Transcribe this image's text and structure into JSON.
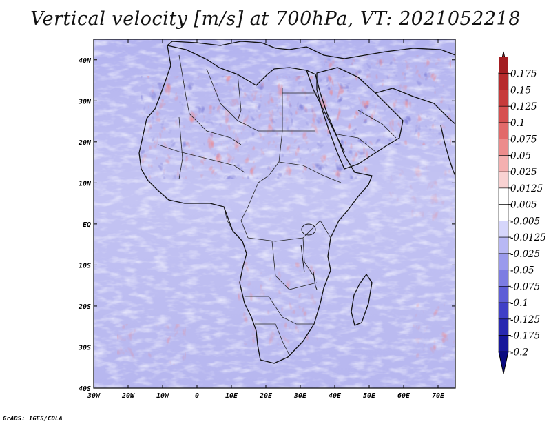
{
  "title": "Vertical velocity [m/s] at 700hPa, VT: 2021052218",
  "credit": "GrADS: IGES/COLA",
  "map": {
    "lon_ticks": [
      "30W",
      "20W",
      "10W",
      "0",
      "10E",
      "20E",
      "30E",
      "40E",
      "50E",
      "60E",
      "70E"
    ],
    "lat_ticks": [
      "40N",
      "30N",
      "20N",
      "10N",
      "EQ",
      "10S",
      "20S",
      "30S",
      "40S"
    ],
    "lon_range": [
      -30,
      75
    ],
    "lat_range": [
      -40,
      45
    ]
  },
  "colorbar": {
    "labels": [
      "0.175",
      "0.15",
      "0.125",
      "0.1",
      "0.075",
      "0.05",
      "0.025",
      "0.0125",
      "0.005",
      "-0.005",
      "-0.0125",
      "-0.025",
      "-0.05",
      "-0.075",
      "-0.1",
      "-0.125",
      "-0.175",
      "-0.2"
    ],
    "colors": [
      "#a41e22",
      "#b72a2c",
      "#c73b3b",
      "#d65050",
      "#e26a6a",
      "#ec8c8c",
      "#f4b0b0",
      "#f9d2d2",
      "#ffffff",
      "#ffffff",
      "#d6d6fb",
      "#b8b8f4",
      "#9a9aec",
      "#7c7ce2",
      "#5e5ed6",
      "#4040c6",
      "#2828b0",
      "#16169a",
      "#0a0a80"
    ]
  }
}
